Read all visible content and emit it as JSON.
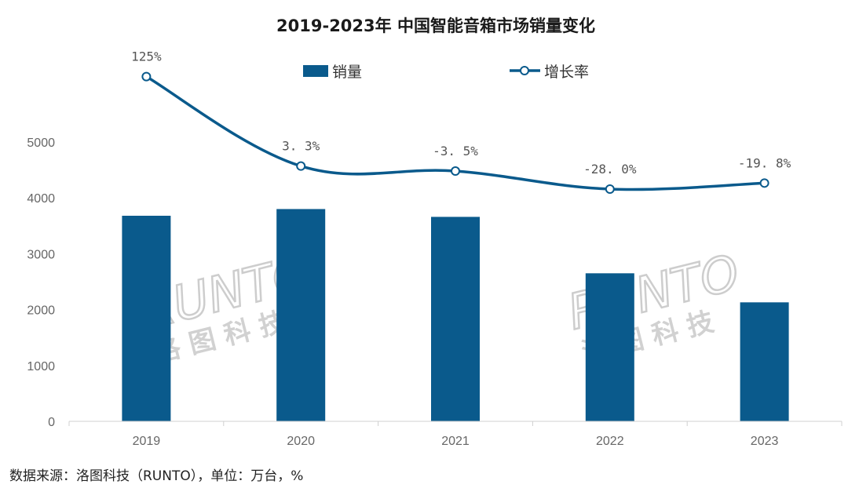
{
  "chart_data": {
    "type": "bar",
    "title": "2019-2023年 中国智能音箱市场销量变化",
    "categories": [
      "2019",
      "2020",
      "2021",
      "2022",
      "2023"
    ],
    "series": [
      {
        "name": "销量",
        "kind": "bar",
        "values": [
          3680,
          3800,
          3660,
          2650,
          2130
        ],
        "color": "#0a5a8c"
      },
      {
        "name": "增长率",
        "kind": "line",
        "axis": "secondary",
        "values": [
          125,
          3.3,
          -3.5,
          -28.0,
          -19.8
        ],
        "labels": [
          "125%",
          "3. 3%",
          "-3. 5%",
          "-28. 0%",
          "-19. 8%"
        ],
        "color": "#0a5a8c"
      }
    ],
    "ylim": [
      0,
      6000
    ],
    "yticks": [
      "0",
      "1000",
      "2000",
      "3000",
      "4000",
      "5000"
    ],
    "legend_position": "top",
    "grid": false
  },
  "watermark": {
    "latin": "RUNTO",
    "cn": "洛 图 科 技"
  },
  "source_note": "数据来源：洛图科技（RUNTO），单位：万台，%"
}
